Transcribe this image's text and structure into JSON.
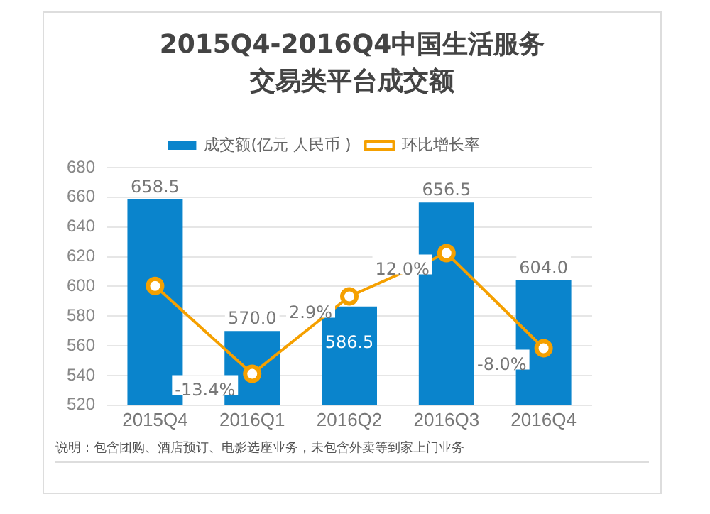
{
  "chart_data": {
    "type": "bar",
    "title": "2015Q4-2016Q4中国生活服务交易类平台成交额",
    "categories": [
      "2015Q4",
      "2016Q1",
      "2016Q2",
      "2016Q3",
      "2016Q4"
    ],
    "series": [
      {
        "name": "成交额(亿元 人民币 )",
        "color": "#0a84cc",
        "values": [
          658.5,
          570.0,
          586.5,
          656.5,
          604.0
        ],
        "value_labels": [
          "658.5",
          "570.0",
          "586.5",
          "656.5",
          "604.0"
        ]
      },
      {
        "name": "环比增长率",
        "type": "line",
        "axis": "y2",
        "color": "#f5a000",
        "marker": "circle",
        "values": [
          5.1,
          -13.4,
          2.9,
          12.0,
          -8.0
        ],
        "value_labels": [
          null,
          "-13.4%",
          "2.9%",
          "12.0%",
          "-8.0%"
        ]
      }
    ],
    "ylim": [
      520,
      680
    ],
    "yticks": [
      520,
      540,
      560,
      580,
      600,
      620,
      640,
      660,
      680
    ],
    "y2lim": [
      -20,
      30
    ],
    "grid": "y",
    "legend": "top",
    "annotations": [
      "说明：包含团购、酒店预订、电影选座业务，未包含外卖等到家上门业务"
    ]
  }
}
